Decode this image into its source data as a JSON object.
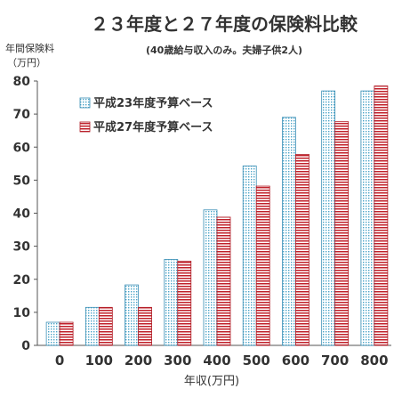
{
  "chart_data": {
    "type": "bar",
    "title": "２３年度と２７年度の保険料比較",
    "subtitle": "(40歳給与収入のみ。夫婦子供2人)",
    "ylabel_line1": "年間保険料",
    "ylabel_line2": "（万円）",
    "xlabel": "年収(万円)",
    "categories": [
      "0",
      "100",
      "200",
      "300",
      "400",
      "500",
      "600",
      "700",
      "800"
    ],
    "ylim": [
      0,
      80
    ],
    "yticks": [
      0,
      10,
      20,
      30,
      40,
      50,
      60,
      70,
      80
    ],
    "grid": false,
    "legend_position": "top-left",
    "series": [
      {
        "name": "平成23年度予算ベース",
        "values": [
          7,
          11.5,
          18.3,
          26,
          41,
          54.3,
          69,
          77,
          77
        ],
        "color": "#4aa3c8",
        "pattern": "dotted"
      },
      {
        "name": "平成27年度予算ベース",
        "values": [
          7,
          11.5,
          11.5,
          25.5,
          38.8,
          48.2,
          57.8,
          67.7,
          78.5
        ],
        "color": "#c0202a",
        "pattern": "striped"
      }
    ]
  }
}
